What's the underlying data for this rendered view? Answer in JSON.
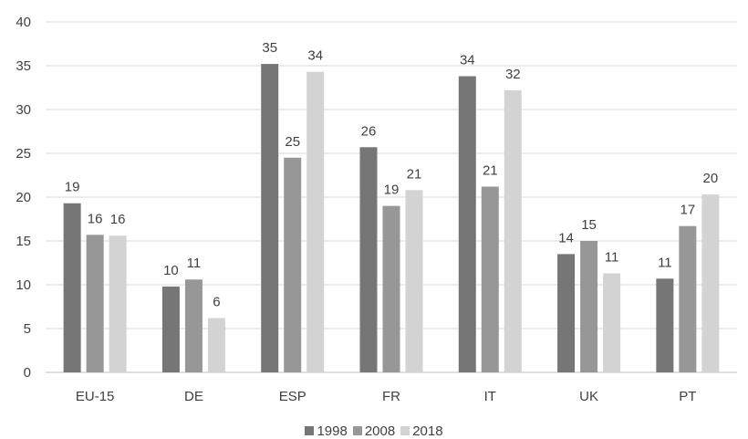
{
  "chart_data": {
    "type": "bar",
    "categories": [
      "EU-15",
      "DE",
      "ESP",
      "FR",
      "IT",
      "UK",
      "PT"
    ],
    "series": [
      {
        "name": "1998",
        "color": "#767676",
        "values": [
          19.3,
          9.8,
          35.2,
          25.7,
          33.8,
          13.5,
          10.7
        ],
        "labels": [
          "19",
          "10",
          "35",
          "26",
          "34",
          "14",
          "11"
        ]
      },
      {
        "name": "2008",
        "color": "#979797",
        "values": [
          15.7,
          10.6,
          24.5,
          19.0,
          21.2,
          15.0,
          16.7
        ],
        "labels": [
          "16",
          "11",
          "25",
          "19",
          "21",
          "15",
          "17"
        ]
      },
      {
        "name": "2018",
        "color": "#d3d3d3",
        "values": [
          15.6,
          6.2,
          34.3,
          20.8,
          32.2,
          11.3,
          20.3
        ],
        "labels": [
          "16",
          "6",
          "34",
          "21",
          "32",
          "11",
          "20"
        ]
      }
    ],
    "ylim": [
      0,
      40
    ],
    "yticks": [
      0,
      5,
      10,
      15,
      20,
      25,
      30,
      35,
      40
    ],
    "grid": true,
    "legend_position": "bottom",
    "gridline_color": "#d9d9d9",
    "axis_color": "#bfbfbf",
    "text_color": "#404040"
  }
}
